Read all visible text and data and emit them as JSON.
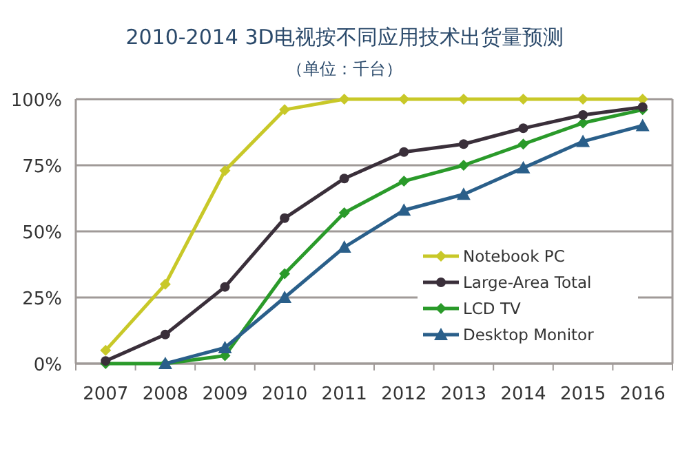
{
  "chart_data": {
    "type": "line",
    "title": "2010-2014 3D电视按不同应用技术出货量预测",
    "subtitle": "（单位：千台）",
    "categories": [
      "2007",
      "2008",
      "2009",
      "2010",
      "2011",
      "2012",
      "2013",
      "2014",
      "2015",
      "2016"
    ],
    "series": [
      {
        "name": "Notebook PC",
        "color": "#c8c828",
        "marker": "diamond",
        "values": [
          5,
          30,
          73,
          96,
          100,
          100,
          100,
          100,
          100,
          100
        ]
      },
      {
        "name": "Large-Area Total",
        "color": "#3a2f3a",
        "marker": "circle",
        "values": [
          1,
          11,
          29,
          55,
          70,
          80,
          83,
          89,
          94,
          97
        ]
      },
      {
        "name": "LCD TV",
        "color": "#2a9a2a",
        "marker": "diamond",
        "values": [
          0,
          0,
          3,
          34,
          57,
          69,
          75,
          83,
          91,
          96
        ]
      },
      {
        "name": "Desktop Monitor",
        "color": "#2a5f8a",
        "marker": "triangle",
        "values": [
          null,
          0,
          6,
          25,
          44,
          58,
          64,
          74,
          84,
          90
        ]
      }
    ],
    "ylim": [
      0,
      100
    ],
    "yticks": [
      {
        "value": 0,
        "label": "0%"
      },
      {
        "value": 25,
        "label": "25%"
      },
      {
        "value": 50,
        "label": "50%"
      },
      {
        "value": 75,
        "label": "75%"
      },
      {
        "value": 100,
        "label": "100%"
      }
    ],
    "grid": "y",
    "legend": "bottom right",
    "line_style": "solid"
  }
}
